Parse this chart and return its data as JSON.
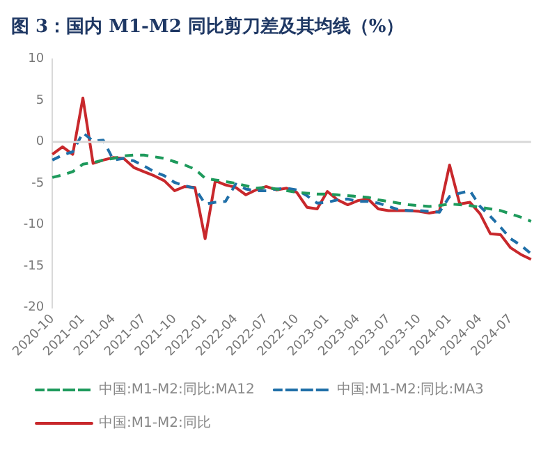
{
  "chart_data": {
    "type": "line",
    "title": "图 3：国内 M1-M2 同比剪刀差及其均线（%）",
    "categories": [
      "2020-10",
      null,
      null,
      "2021-01",
      null,
      null,
      "2021-04",
      null,
      null,
      "2021-07",
      null,
      null,
      "2021-10",
      null,
      null,
      "2022-01",
      null,
      null,
      "2022-04",
      null,
      null,
      "2022-07",
      null,
      null,
      "2022-10",
      null,
      null,
      "2023-01",
      null,
      null,
      "2023-04",
      null,
      null,
      "2023-07",
      null,
      null,
      "2023-10",
      null,
      null,
      "2024-01",
      null,
      null,
      "2024-04",
      null,
      null,
      "2024-07",
      null,
      null
    ],
    "series": [
      {
        "name": "中国:M1-M2:同比",
        "color": "#c8282c",
        "line_style": "solid",
        "values": [
          -1.5,
          -0.6,
          -1.5,
          5.3,
          -2.6,
          -2.2,
          -1.9,
          -2.0,
          -3.1,
          -3.6,
          -4.1,
          -4.7,
          -5.9,
          -5.4,
          -5.5,
          -11.7,
          -4.7,
          -5.2,
          -5.5,
          -6.4,
          -5.8,
          -5.4,
          -5.8,
          -5.6,
          -6.1,
          -7.9,
          -8.1,
          -6.0,
          -7.0,
          -7.6,
          -7.1,
          -6.9,
          -8.1,
          -8.3,
          -8.3,
          -8.3,
          -8.4,
          -8.6,
          -8.4,
          -2.8,
          -7.5,
          -7.3,
          -8.7,
          -11.1,
          -11.2,
          -12.8,
          -13.6,
          -14.2
        ]
      },
      {
        "name": "中国:M1-M2:同比:MA3",
        "color": "#1f6fa8",
        "line_style": "dashed",
        "values": [
          -2.2,
          -1.6,
          -1.2,
          1.1,
          0.1,
          0.2,
          -2.2,
          -2.0,
          -2.3,
          -2.9,
          -3.6,
          -4.1,
          -4.9,
          -5.3,
          -5.6,
          -7.5,
          -7.3,
          -7.2,
          -5.1,
          -5.7,
          -5.9,
          -5.9,
          -5.7,
          -5.6,
          -5.8,
          -6.5,
          -7.4,
          -7.3,
          -7.0,
          -6.9,
          -7.2,
          -7.2,
          -7.4,
          -7.8,
          -8.2,
          -8.3,
          -8.3,
          -8.4,
          -8.5,
          -6.6,
          -6.2,
          -5.9,
          -7.8,
          -9.0,
          -10.3,
          -11.7,
          -12.5,
          -13.5
        ]
      },
      {
        "name": "中国:M1-M2:同比:MA12",
        "color": "#1e9a5c",
        "line_style": "dashed",
        "values": [
          -4.3,
          -4.0,
          -3.6,
          -2.7,
          -2.5,
          -2.2,
          -2.0,
          -1.7,
          -1.6,
          -1.6,
          -1.8,
          -2.0,
          -2.4,
          -2.8,
          -3.3,
          -4.4,
          -4.6,
          -4.8,
          -5.0,
          -5.3,
          -5.6,
          -5.5,
          -5.7,
          -5.9,
          -6.1,
          -6.2,
          -6.3,
          -6.3,
          -6.4,
          -6.5,
          -6.6,
          -6.7,
          -7.0,
          -7.2,
          -7.4,
          -7.6,
          -7.7,
          -7.8,
          -7.7,
          -7.5,
          -7.6,
          -7.7,
          -7.9,
          -8.1,
          -8.3,
          -8.7,
          -9.1,
          -9.6
        ]
      }
    ],
    "ylim": [
      -20,
      10
    ],
    "yticks": [
      -20,
      -15,
      -10,
      -5,
      0,
      5,
      10
    ],
    "grid": false,
    "legend": "bottom",
    "marker": "none",
    "ref_lines": [
      {
        "axis": "y",
        "value": 0,
        "color": "#d9d9d9"
      }
    ]
  }
}
